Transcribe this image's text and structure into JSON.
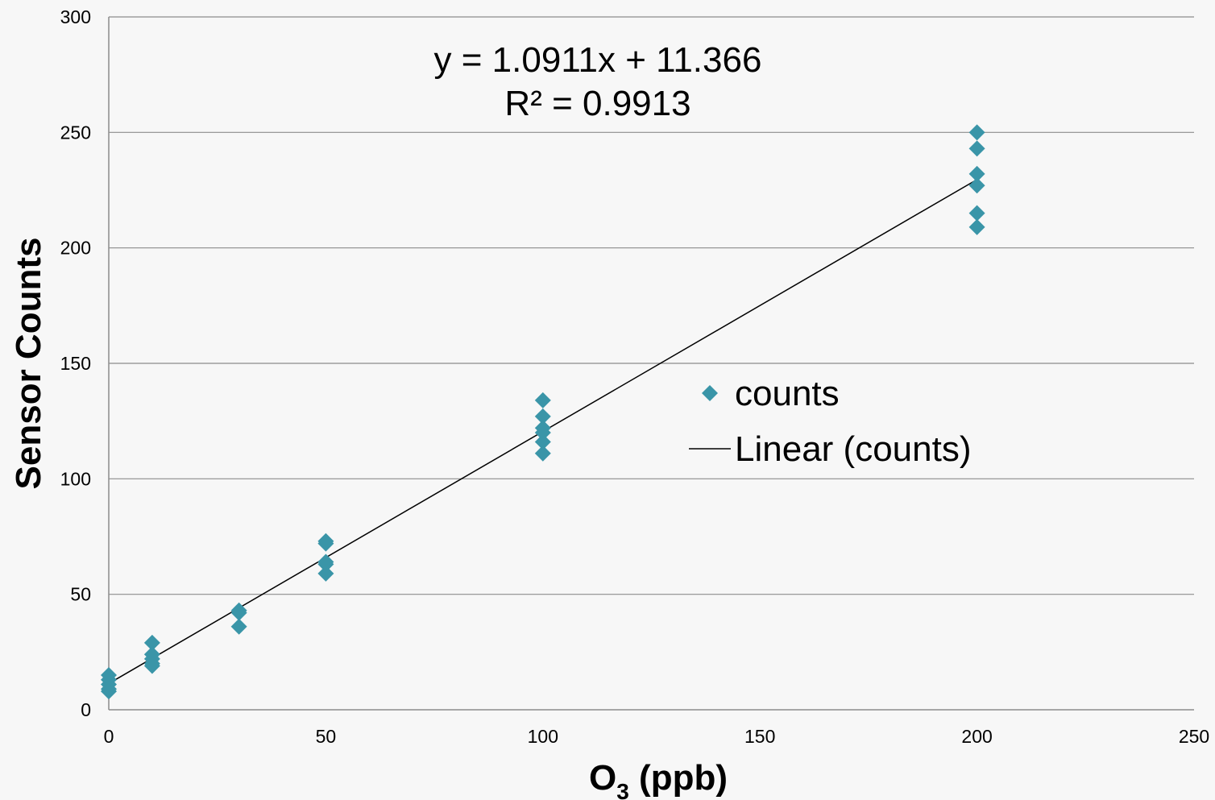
{
  "chart_data": {
    "type": "scatter",
    "xlim": [
      0,
      250
    ],
    "ylim": [
      0,
      300
    ],
    "x_ticks": [
      0,
      50,
      100,
      150,
      200,
      250
    ],
    "y_ticks": [
      0,
      50,
      100,
      150,
      200,
      250,
      300
    ],
    "xlabel_main": "O",
    "xlabel_sub": "3",
    "xlabel_rest": " (ppb)",
    "ylabel": "Sensor  Counts",
    "grid": "horizontal",
    "legend_placement": "center-right",
    "series": [
      {
        "name": "counts",
        "color": "#3a95a8",
        "marker": "diamond",
        "points": [
          [
            0,
            15
          ],
          [
            0,
            13
          ],
          [
            0,
            11
          ],
          [
            0,
            9
          ],
          [
            0,
            8
          ],
          [
            10,
            29
          ],
          [
            10,
            24
          ],
          [
            10,
            22
          ],
          [
            10,
            20
          ],
          [
            10,
            19
          ],
          [
            30,
            43
          ],
          [
            30,
            42
          ],
          [
            30,
            36
          ],
          [
            50,
            73
          ],
          [
            50,
            72
          ],
          [
            50,
            64
          ],
          [
            50,
            63
          ],
          [
            50,
            59
          ],
          [
            100,
            134
          ],
          [
            100,
            127
          ],
          [
            100,
            122
          ],
          [
            100,
            120
          ],
          [
            100,
            116
          ],
          [
            100,
            111
          ],
          [
            200,
            250
          ],
          [
            200,
            243
          ],
          [
            200,
            232
          ],
          [
            200,
            227
          ],
          [
            200,
            215
          ],
          [
            200,
            209
          ]
        ]
      },
      {
        "name": "Linear (counts)",
        "type": "trendline",
        "color": "#000000",
        "slope": 1.0911,
        "intercept": 11.366,
        "x_range": [
          0,
          200
        ]
      }
    ],
    "annotations": {
      "equation": "y = 1.0911x + 11.366",
      "r_squared": "R² = 0.9913"
    }
  }
}
